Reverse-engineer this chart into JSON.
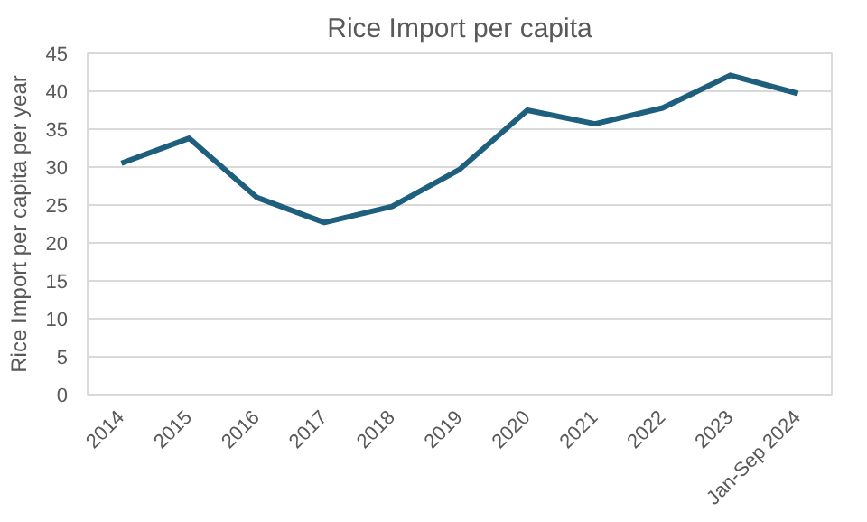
{
  "chart_data": {
    "type": "line",
    "title": "Rice Import per capita",
    "ylabel": "Rice Import per capita per year",
    "categories": [
      "2014",
      "2015",
      "2016",
      "2017",
      "2018",
      "2019",
      "2020",
      "2021",
      "2022",
      "2023",
      "Jan-Sep 2024"
    ],
    "series": [
      {
        "color": "#1e5f7e",
        "values": [
          30.5,
          33.8,
          26,
          22.7,
          24.8,
          29.7,
          37.5,
          35.7,
          37.8,
          42.1,
          39.7
        ]
      }
    ],
    "ylim": [
      0,
      45
    ],
    "yticks": [
      0,
      5,
      10,
      15,
      20,
      25,
      30,
      35,
      40,
      45
    ],
    "grid": "y",
    "marker": "none",
    "line_style": "solid"
  }
}
